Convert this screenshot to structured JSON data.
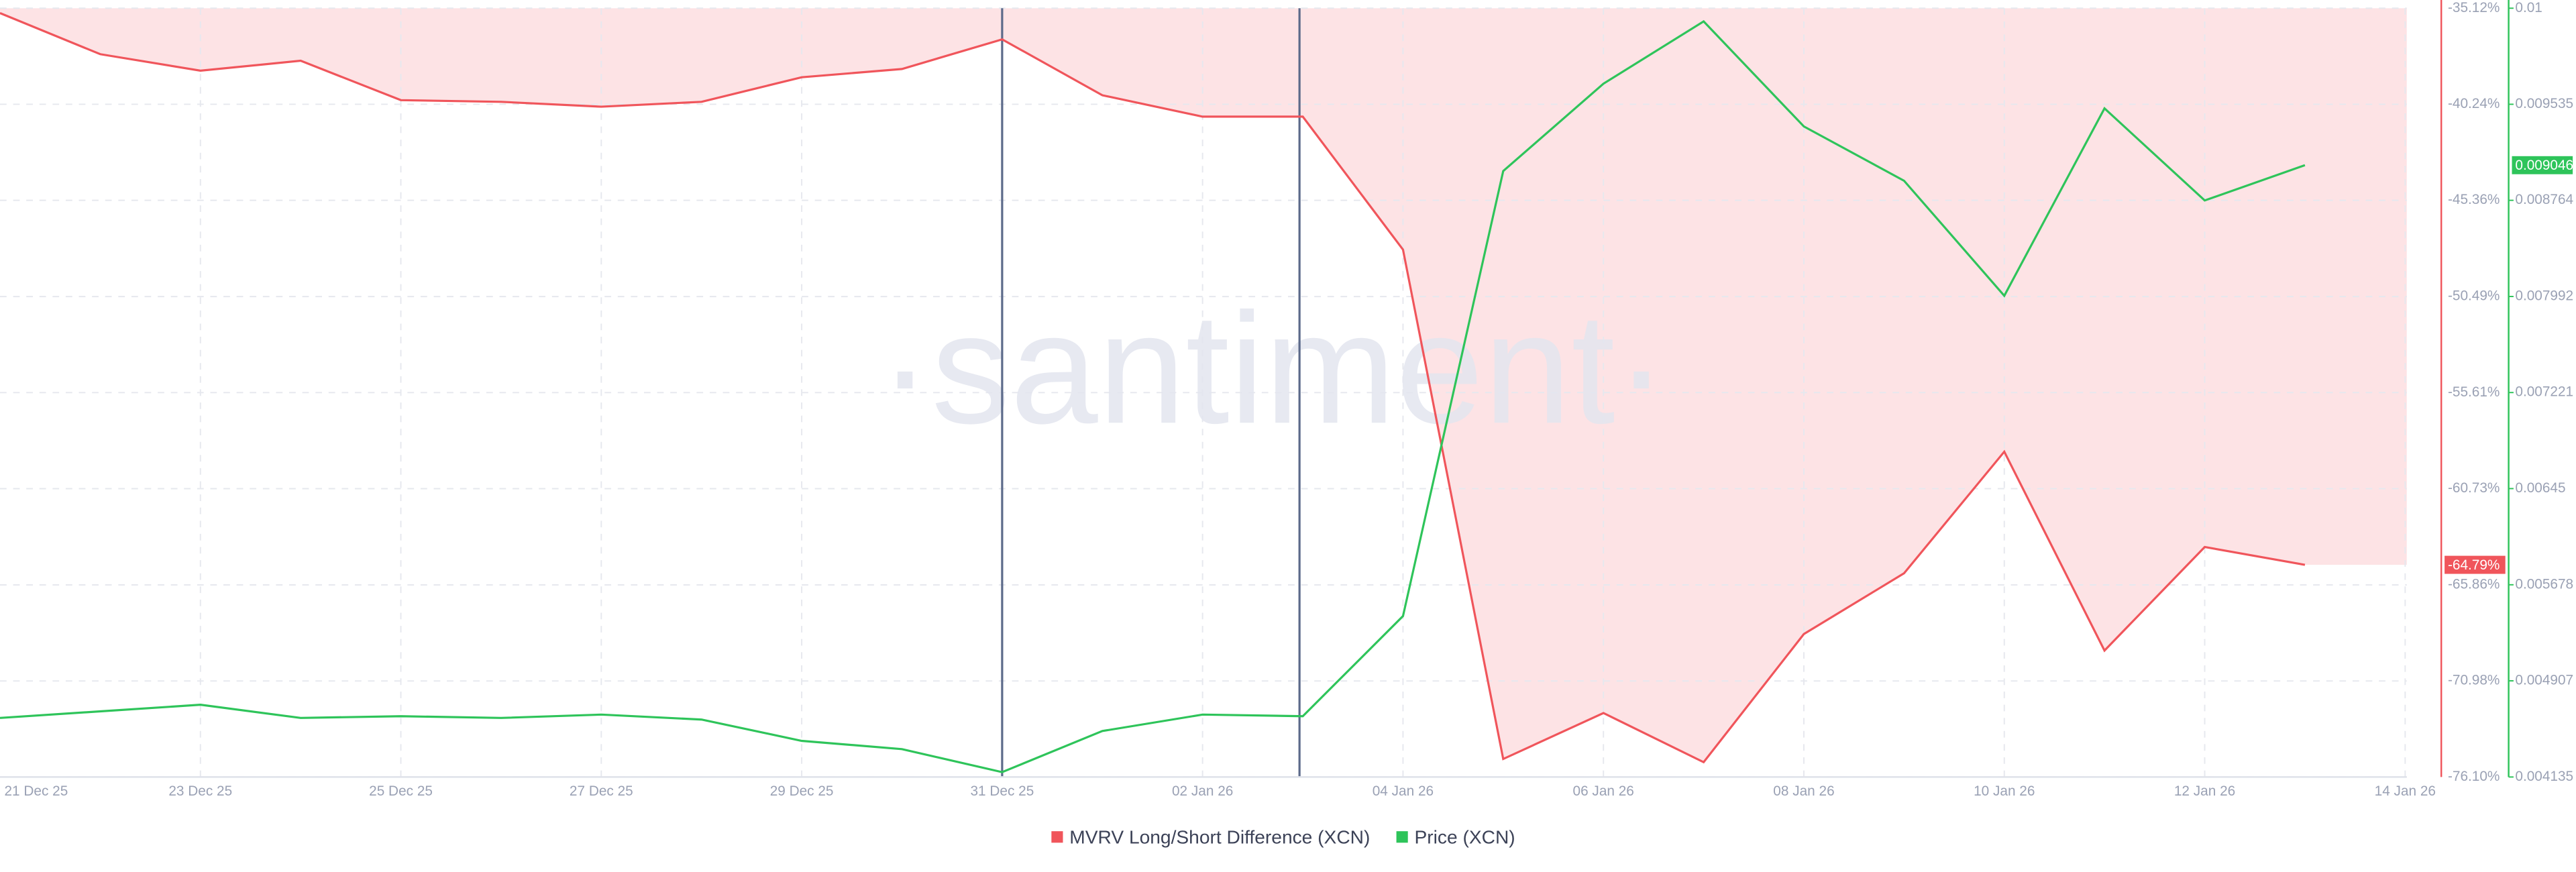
{
  "chart_data": {
    "type": "line",
    "watermark": "·santiment·",
    "categories": [
      "21 Dec 25",
      null,
      "23 Dec 25",
      null,
      "25 Dec 25",
      null,
      "27 Dec 25",
      null,
      "29 Dec 25",
      null,
      "31 Dec 25",
      null,
      "02 Jan 26",
      null,
      "04 Jan 26",
      null,
      "06 Jan 26",
      null,
      "08 Jan 26",
      null,
      "10 Jan 26",
      null,
      "12 Jan 26",
      null,
      "14 Jan 26"
    ],
    "series": [
      {
        "name": "MVRV Long/Short Difference (XCN)",
        "color": "#f0555b",
        "fill": "#fde3e5",
        "axis": "y",
        "values": [
          -35.38,
          -37.57,
          -38.45,
          -37.92,
          -40.02,
          -40.11,
          -40.37,
          -40.11,
          -38.8,
          -38.36,
          -36.78,
          -39.76,
          -40.9,
          -40.9,
          -47.99,
          -75.14,
          -72.69,
          -75.31,
          -68.48,
          -65.24,
          -58.76,
          -69.36,
          -63.84,
          -64.79,
          null
        ],
        "value_labels": [
          null,
          null,
          null,
          null,
          null,
          null,
          null,
          null,
          null,
          null,
          null,
          null,
          null,
          null,
          null,
          null,
          null,
          null,
          null,
          null,
          null,
          null,
          null,
          "-64.79%",
          null
        ]
      },
      {
        "name": "Price (XCN)",
        "color": "#2ec45a",
        "axis": "y2",
        "values": [
          0.004609,
          0.004662,
          0.004715,
          0.004609,
          0.004623,
          0.004609,
          0.004636,
          0.004596,
          0.004425,
          0.004359,
          0.004174,
          0.004504,
          0.004636,
          0.004623,
          0.005427,
          0.008999,
          0.0097,
          0.0102,
          0.009357,
          0.008921,
          0.007998,
          0.009502,
          0.008763,
          0.009046,
          null
        ],
        "value_labels": [
          null,
          null,
          null,
          null,
          null,
          null,
          null,
          null,
          null,
          null,
          null,
          null,
          null,
          null,
          null,
          null,
          null,
          null,
          null,
          null,
          null,
          null,
          null,
          "0.009046",
          null
        ]
      }
    ],
    "ylim": [
      -76.1,
      -35.12
    ],
    "yticks": [
      {
        "value": -35.12,
        "label": "-35.12%"
      },
      {
        "value": -40.24,
        "label": "-40.24%"
      },
      {
        "value": -45.36,
        "label": "-45.36%"
      },
      {
        "value": -50.49,
        "label": "-50.49%"
      },
      {
        "value": -55.61,
        "label": "-55.61%"
      },
      {
        "value": -60.73,
        "label": "-60.73%"
      },
      {
        "value": -65.86,
        "label": "-65.86%"
      },
      {
        "value": -70.98,
        "label": "-70.98%"
      },
      {
        "value": -76.1,
        "label": "-76.10%"
      }
    ],
    "y2lim": [
      0.004135,
      0.010306
    ],
    "y2ticks": [
      {
        "value": 0.010306,
        "label": "0.01"
      },
      0.009535,
      0.008764,
      0.007992,
      0.007221,
      0.00645,
      0.005678,
      0.004907,
      0.004135
    ],
    "grid": true
  }
}
